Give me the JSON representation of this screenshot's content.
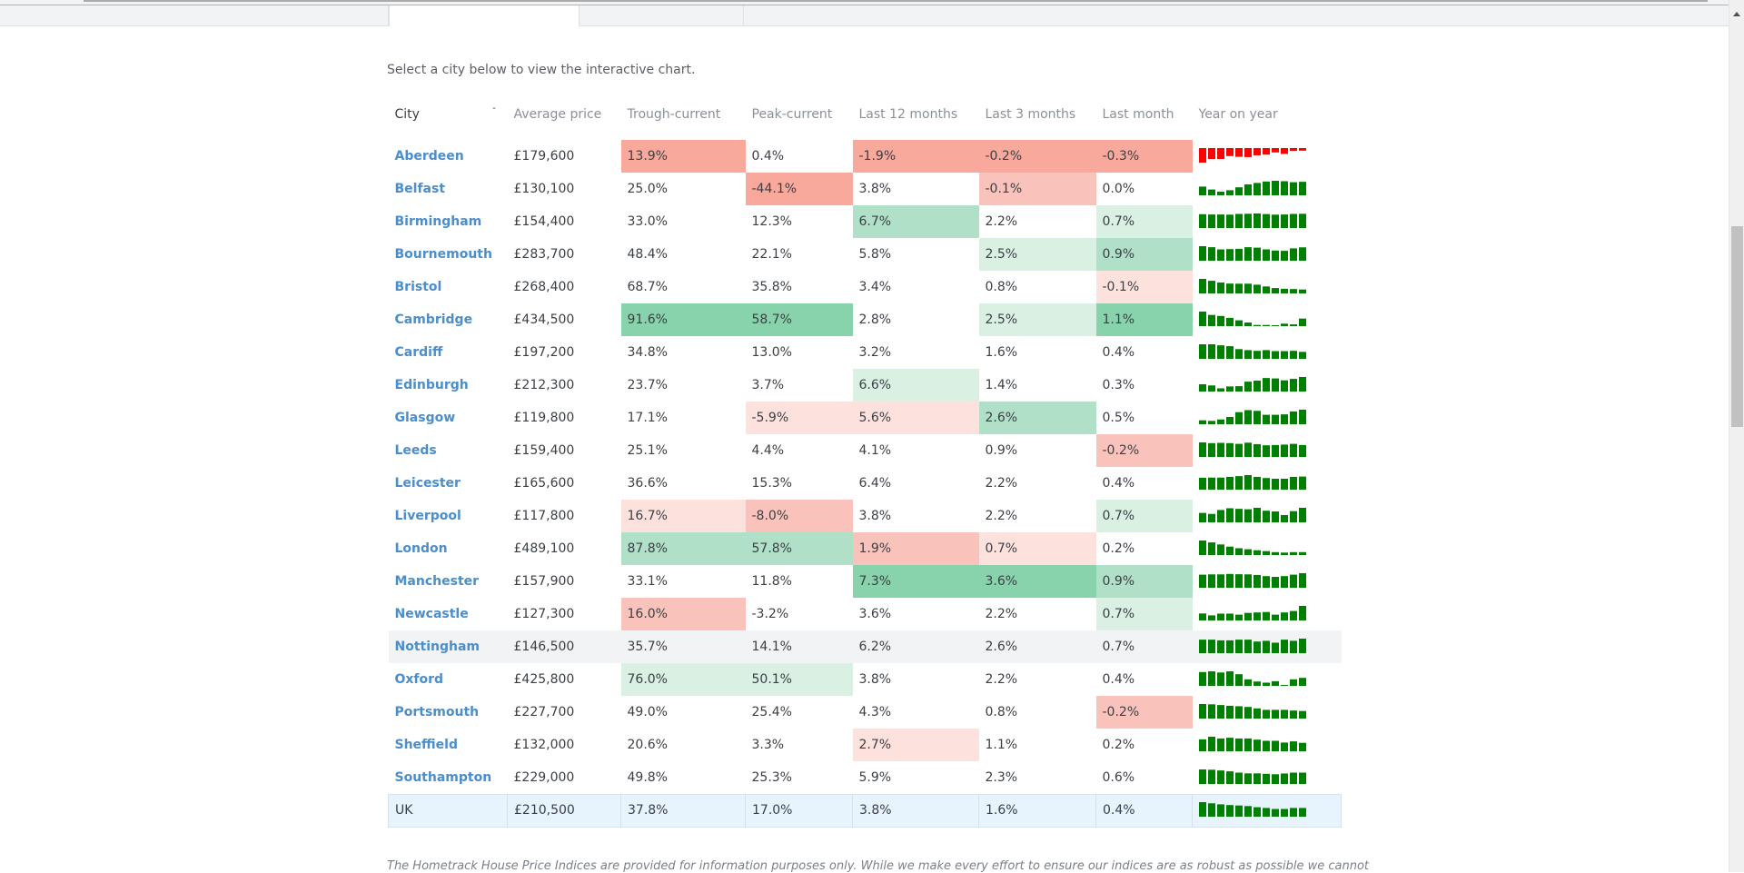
{
  "intro_text": "Select a city below to view the interactive chart.",
  "table": {
    "headers": [
      "City",
      "Average price",
      "Trough-current",
      "Peak-current",
      "Last 12 months",
      "Last 3 months",
      "Last month",
      "Year on year"
    ],
    "sort_icon": "chevron-down-icon",
    "colors": {
      "red_strong": "#f8a99c",
      "red_medium": "#f9c3bb",
      "red_light": "#fde1dd",
      "green_strong": "#88d3ac",
      "green_medium": "#b0e0c7",
      "green_light": "#d9f0e3",
      "spark_positive": "#008000",
      "spark_negative": "#ff0000",
      "link": "#4a8ecb"
    },
    "rows": [
      {
        "city": "Aberdeen",
        "avg": "£179,600",
        "trough": "13.9%",
        "peak": "0.4%",
        "l12": "-1.9%",
        "l3": "-0.2%",
        "lm": "-0.3%",
        "shade": {
          "trough": "red_strong",
          "l12": "red_strong",
          "l3": "red_strong",
          "lm": "red_strong"
        },
        "yoy": [
          -1.0,
          -0.75,
          -0.75,
          -0.55,
          -0.6,
          -0.62,
          -0.5,
          -0.45,
          -0.3,
          -0.4,
          -0.2,
          -0.18
        ]
      },
      {
        "city": "Belfast",
        "avg": "£130,100",
        "trough": "25.0%",
        "peak": "-44.1%",
        "l12": "3.8%",
        "l3": "-0.1%",
        "lm": "0.0%",
        "shade": {
          "peak": "red_strong",
          "l3": "red_medium"
        },
        "yoy": [
          0.6,
          0.4,
          0.25,
          0.35,
          0.55,
          0.75,
          0.85,
          0.95,
          1.0,
          0.97,
          0.9,
          0.93
        ]
      },
      {
        "city": "Birmingham",
        "avg": "£154,400",
        "trough": "33.0%",
        "peak": "12.3%",
        "l12": "6.7%",
        "l3": "2.2%",
        "lm": "0.7%",
        "shade": {
          "l12": "green_medium",
          "lm": "green_light"
        },
        "yoy": [
          0.95,
          0.93,
          0.93,
          0.92,
          0.97,
          0.98,
          1.0,
          0.96,
          0.92,
          0.93,
          0.97,
          0.98
        ]
      },
      {
        "city": "Bournemouth",
        "avg": "£283,700",
        "trough": "48.4%",
        "peak": "22.1%",
        "l12": "5.8%",
        "l3": "2.5%",
        "lm": "0.9%",
        "shade": {
          "l3": "green_light",
          "lm": "green_medium"
        },
        "yoy": [
          1.0,
          0.93,
          0.78,
          0.8,
          0.82,
          0.93,
          0.9,
          0.78,
          0.7,
          0.68,
          0.85,
          0.92
        ]
      },
      {
        "city": "Bristol",
        "avg": "£268,400",
        "trough": "68.7%",
        "peak": "35.8%",
        "l12": "3.4%",
        "l3": "0.8%",
        "lm": "-0.1%",
        "shade": {
          "lm": "red_light"
        },
        "yoy": [
          1.0,
          0.87,
          0.75,
          0.68,
          0.67,
          0.67,
          0.6,
          0.48,
          0.37,
          0.32,
          0.3,
          0.27
        ]
      },
      {
        "city": "Cambridge",
        "avg": "£434,500",
        "trough": "91.6%",
        "peak": "58.7%",
        "l12": "2.8%",
        "l3": "2.5%",
        "lm": "1.1%",
        "shade": {
          "trough": "green_strong",
          "peak": "green_strong",
          "l3": "green_light",
          "lm": "green_strong"
        },
        "yoy": [
          1.0,
          0.77,
          0.7,
          0.57,
          0.4,
          0.25,
          0.08,
          0.08,
          0.05,
          0.17,
          0.12,
          0.52
        ]
      },
      {
        "city": "Cardiff",
        "avg": "£197,200",
        "trough": "34.8%",
        "peak": "13.0%",
        "l12": "3.2%",
        "l3": "1.6%",
        "lm": "0.4%",
        "shade": {},
        "yoy": [
          1.0,
          1.0,
          0.93,
          0.87,
          0.67,
          0.6,
          0.55,
          0.6,
          0.53,
          0.53,
          0.55,
          0.48
        ]
      },
      {
        "city": "Edinburgh",
        "avg": "£212,300",
        "trough": "23.7%",
        "peak": "3.7%",
        "l12": "6.6%",
        "l3": "1.4%",
        "lm": "0.3%",
        "shade": {
          "l12": "green_light"
        },
        "yoy": [
          0.5,
          0.42,
          0.22,
          0.35,
          0.37,
          0.68,
          0.75,
          0.93,
          0.9,
          0.77,
          0.87,
          1.0
        ]
      },
      {
        "city": "Glasgow",
        "avg": "£119,800",
        "trough": "17.1%",
        "peak": "-5.9%",
        "l12": "5.6%",
        "l3": "2.6%",
        "lm": "0.5%",
        "shade": {
          "peak": "red_light",
          "l12": "red_light",
          "l3": "green_medium"
        },
        "yoy": [
          0.27,
          0.23,
          0.33,
          0.5,
          0.83,
          0.97,
          0.92,
          0.65,
          0.65,
          0.68,
          0.88,
          1.0
        ]
      },
      {
        "city": "Leeds",
        "avg": "£159,400",
        "trough": "25.1%",
        "peak": "4.4%",
        "l12": "4.1%",
        "l3": "0.9%",
        "lm": "-0.2%",
        "shade": {
          "lm": "red_medium"
        },
        "yoy": [
          1.0,
          0.95,
          0.97,
          0.95,
          0.9,
          0.98,
          0.88,
          0.8,
          0.82,
          0.85,
          0.9,
          0.82
        ]
      },
      {
        "city": "Leicester",
        "avg": "£165,600",
        "trough": "36.6%",
        "peak": "15.3%",
        "l12": "6.4%",
        "l3": "2.2%",
        "lm": "0.4%",
        "shade": {},
        "yoy": [
          0.82,
          0.83,
          0.83,
          0.88,
          0.93,
          1.0,
          0.88,
          0.8,
          0.75,
          0.75,
          0.88,
          0.9
        ]
      },
      {
        "city": "Liverpool",
        "avg": "£117,800",
        "trough": "16.7%",
        "peak": "-8.0%",
        "l12": "3.8%",
        "l3": "2.2%",
        "lm": "0.7%",
        "shade": {
          "trough": "red_light",
          "peak": "red_medium",
          "lm": "green_light"
        },
        "yoy": [
          0.65,
          0.58,
          0.85,
          0.97,
          0.93,
          0.9,
          1.0,
          0.8,
          0.75,
          0.5,
          0.77,
          1.0
        ]
      },
      {
        "city": "London",
        "avg": "£489,100",
        "trough": "87.8%",
        "peak": "57.8%",
        "l12": "1.9%",
        "l3": "0.7%",
        "lm": "0.2%",
        "shade": {
          "trough": "green_medium",
          "peak": "green_medium",
          "l12": "red_medium",
          "l3": "red_light"
        },
        "yoy": [
          1.0,
          0.87,
          0.73,
          0.58,
          0.47,
          0.4,
          0.33,
          0.27,
          0.2,
          0.17,
          0.2,
          0.2
        ]
      },
      {
        "city": "Manchester",
        "avg": "£157,900",
        "trough": "33.1%",
        "peak": "11.8%",
        "l12": "7.3%",
        "l3": "3.6%",
        "lm": "0.9%",
        "shade": {
          "l12": "green_strong",
          "l3": "green_strong",
          "lm": "green_medium"
        },
        "yoy": [
          0.9,
          0.92,
          0.92,
          0.95,
          0.93,
          0.92,
          0.88,
          0.8,
          0.75,
          0.8,
          0.9,
          1.0
        ]
      },
      {
        "city": "Newcastle",
        "avg": "£127,300",
        "trough": "16.0%",
        "peak": "-3.2%",
        "l12": "3.6%",
        "l3": "2.2%",
        "lm": "0.7%",
        "shade": {
          "trough": "red_medium",
          "lm": "green_light"
        },
        "yoy": [
          0.48,
          0.35,
          0.47,
          0.47,
          0.4,
          0.52,
          0.55,
          0.58,
          0.4,
          0.55,
          0.65,
          1.0
        ]
      },
      {
        "city": "Nottingham",
        "avg": "£146,500",
        "trough": "35.7%",
        "peak": "14.1%",
        "l12": "6.2%",
        "l3": "2.6%",
        "lm": "0.7%",
        "shade": {},
        "hover": true,
        "yoy": [
          0.93,
          0.93,
          0.88,
          0.88,
          0.93,
          0.93,
          0.8,
          0.85,
          0.72,
          0.93,
          0.85,
          1.0
        ]
      },
      {
        "city": "Oxford",
        "avg": "£425,800",
        "trough": "76.0%",
        "peak": "50.1%",
        "l12": "3.8%",
        "l3": "2.2%",
        "lm": "0.4%",
        "shade": {
          "trough": "green_light",
          "peak": "green_light"
        },
        "yoy": [
          0.95,
          1.0,
          0.92,
          1.0,
          0.8,
          0.45,
          0.3,
          0.22,
          0.32,
          0.04,
          0.45,
          0.55
        ]
      },
      {
        "city": "Portsmouth",
        "avg": "£227,700",
        "trough": "49.0%",
        "peak": "25.4%",
        "l12": "4.3%",
        "l3": "0.8%",
        "lm": "-0.2%",
        "shade": {
          "lm": "red_medium"
        },
        "yoy": [
          1.0,
          0.98,
          0.93,
          0.88,
          0.85,
          0.8,
          0.7,
          0.6,
          0.6,
          0.6,
          0.55,
          0.52
        ]
      },
      {
        "city": "Sheffield",
        "avg": "£132,000",
        "trough": "20.6%",
        "peak": "3.3%",
        "l12": "2.7%",
        "l3": "1.1%",
        "lm": "0.2%",
        "shade": {
          "l12": "red_light"
        },
        "yoy": [
          0.82,
          1.0,
          0.88,
          0.93,
          0.88,
          0.88,
          0.8,
          0.72,
          0.72,
          0.6,
          0.68,
          0.58
        ]
      },
      {
        "city": "Southampton",
        "avg": "£229,000",
        "trough": "49.8%",
        "peak": "25.3%",
        "l12": "5.9%",
        "l3": "2.3%",
        "lm": "0.6%",
        "shade": {},
        "yoy": [
          1.0,
          0.98,
          0.93,
          0.87,
          0.78,
          0.73,
          0.73,
          0.7,
          0.67,
          0.72,
          0.78,
          0.78
        ]
      },
      {
        "city": "UK",
        "avg": "£210,500",
        "trough": "37.8%",
        "peak": "17.0%",
        "l12": "3.8%",
        "l3": "1.6%",
        "lm": "0.4%",
        "shade": {},
        "summary": true,
        "yoy": [
          1.0,
          0.92,
          0.85,
          0.8,
          0.77,
          0.73,
          0.65,
          0.6,
          0.53,
          0.53,
          0.6,
          0.6
        ]
      }
    ]
  },
  "disclaimer": "The Hometrack House Price Indices are provided for information purposes only. While we make every effort to ensure our indices are as robust as possible we cannot"
}
